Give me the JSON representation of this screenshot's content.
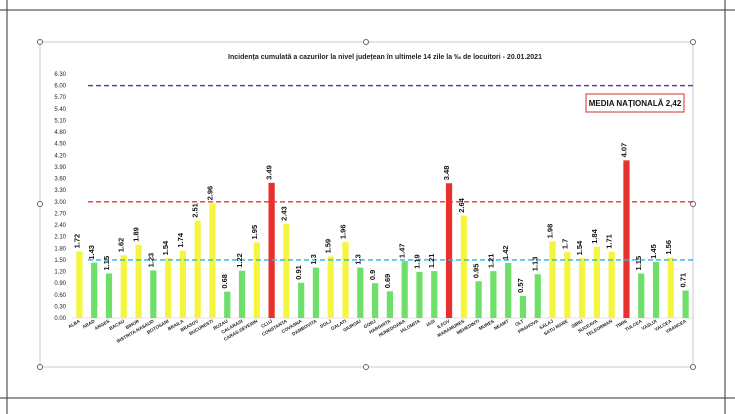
{
  "chart_data": {
    "type": "bar",
    "title": "Incidența cumulată a cazurilor la nivel județean în ultimele 14 zile la ‰ de locuitori - 20.01.2021",
    "categories": [
      "ALBA",
      "ARAD",
      "ARGES",
      "BACAU",
      "BIHOR",
      "BISTRITA-NASAUD",
      "BOTOSANI",
      "BRAILA",
      "BRASOV",
      "BUCURESTI",
      "BUZAU",
      "CALARASI",
      "CARAS-SEVERIN",
      "CLUJ",
      "CONSTANTA",
      "COVASNA",
      "DAMBOVITA",
      "DOLJ",
      "GALATI",
      "GIURGIU",
      "GORJ",
      "HARGHITA",
      "HUNEDOARA",
      "IALOMITA",
      "IASI",
      "ILFOV",
      "MARAMURES",
      "MEHEDINTI",
      "MURES",
      "NEAMT",
      "OLT",
      "PRAHOVA",
      "SALAJ",
      "SATU MARE",
      "SIBIU",
      "SUCEAVA",
      "TELEORMAN",
      "TIMIS",
      "TULCEA",
      "VASLUI",
      "VALCEA",
      "VRANCEA"
    ],
    "values": [
      1.72,
      1.43,
      1.15,
      1.62,
      1.89,
      1.23,
      1.54,
      1.74,
      2.51,
      2.96,
      0.68,
      1.22,
      1.95,
      3.49,
      2.43,
      0.91,
      1.3,
      1.59,
      1.96,
      1.3,
      0.9,
      0.69,
      1.47,
      1.19,
      1.21,
      3.48,
      2.64,
      0.95,
      1.21,
      1.42,
      0.57,
      1.13,
      1.98,
      1.7,
      1.54,
      1.84,
      1.71,
      4.07,
      1.15,
      1.45,
      1.56,
      0.71
    ],
    "value_labels": [
      "1.72",
      "1.43",
      "1.15",
      "1.62",
      "1.89",
      "1.23",
      "1.54",
      "1.74",
      "2.51",
      "2.96",
      "0.68",
      "1.22",
      "1.95",
      "3.49",
      "2.43",
      "0.91",
      "1.3",
      "1.59",
      "1.96",
      "1.3",
      "0.9",
      "0.69",
      "1.47",
      "1.19",
      "1.21",
      "3.48",
      "2.64",
      "0.95",
      "1.21",
      "1.42",
      "0.57",
      "1.13",
      "1.98",
      "1.7",
      "1.54",
      "1.84",
      "1.71",
      "4.07",
      "1.15",
      "1.45",
      "1.56",
      "0.71"
    ],
    "yticks": [
      "0.00",
      "0.30",
      "0.60",
      "0.90",
      "1.20",
      "1.50",
      "1.80",
      "2.10",
      "2.40",
      "2.70",
      "3.00",
      "3.30",
      "3.60",
      "3.90",
      "4.20",
      "4.50",
      "4.80",
      "5.10",
      "5.40",
      "5.70",
      "6.00",
      "6.30"
    ],
    "ylim": [
      0,
      6.3
    ],
    "thresholds": [
      {
        "value": 1.5,
        "color": "#29b6e6"
      },
      {
        "value": 3.0,
        "color": "#e53935"
      },
      {
        "value": 6.0,
        "color": "#6a3fa0"
      }
    ],
    "colors": {
      "green": "#6ee06a",
      "yellow": "#f5f540",
      "red": "#e8302c"
    },
    "annotation": "MEDIA NAȚIONALĂ 2,42"
  }
}
